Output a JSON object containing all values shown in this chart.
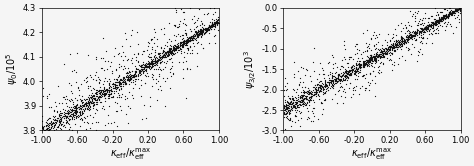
{
  "left_plot": {
    "xlim": [
      -1.0,
      1.0
    ],
    "ylim": [
      3.8,
      4.3
    ],
    "xlabel": "$\\kappa_{\\rm eff}/\\kappa_{\\rm eff}^{\\rm max}$",
    "ylabel": "$\\psi_0 / 10^5$",
    "xticks": [
      -1.0,
      -0.6,
      -0.2,
      0.2,
      0.6,
      1.0
    ],
    "xtick_labels": [
      "-1.00",
      "-0.60",
      "-0.20",
      "0.20",
      "0.60",
      "1.00"
    ],
    "yticks": [
      3.8,
      3.9,
      4.0,
      4.1,
      4.2,
      4.3
    ],
    "ytick_labels": [
      "3.8",
      "3.9",
      "4.0",
      "4.1",
      "4.2",
      "4.3"
    ],
    "trend_slope": 0.225,
    "trend_intercept": 4.02,
    "tight_spread": 0.012,
    "loose_spread_scale": 0.055
  },
  "right_plot": {
    "xlim": [
      -1.0,
      1.0
    ],
    "ylim": [
      -3.0,
      0.0
    ],
    "xlabel": "$\\kappa_{\\rm eff}/\\kappa_{\\rm eff}^{\\rm max}$",
    "ylabel": "$\\psi_{3/2} / 10^3$",
    "xticks": [
      -1.0,
      -0.6,
      -0.2,
      0.2,
      0.6,
      1.0
    ],
    "xtick_labels": [
      "-1.00",
      "-0.60",
      "-0.20",
      "0.20",
      "0.60",
      "1.00"
    ],
    "yticks": [
      -3.0,
      -2.5,
      -2.0,
      -1.5,
      -1.0,
      -0.5,
      0.0
    ],
    "ytick_labels": [
      "-3.0",
      "-2.5",
      "-2.0",
      "-1.5",
      "-1.0",
      "-0.5",
      "0.0"
    ],
    "trend_slope": 1.25,
    "trend_intercept": -1.25,
    "tight_spread": 0.06,
    "loose_spread_scale": 0.22
  },
  "n_tight": 1200,
  "n_loose": 600,
  "marker_size": 0.8,
  "marker_color": "#111111",
  "background_color": "#f5f5f5",
  "tick_fontsize": 6.0,
  "label_fontsize": 7.0,
  "seed": 12345
}
